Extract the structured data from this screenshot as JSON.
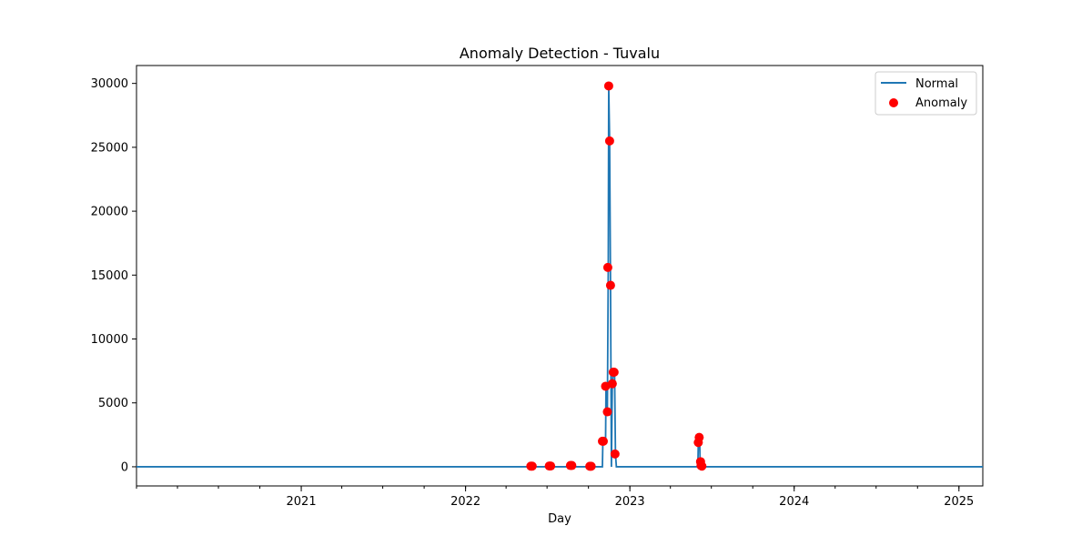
{
  "chart_data": {
    "type": "line",
    "title": "Anomaly Detection - Tuvalu",
    "xlabel": "Day",
    "ylabel": "",
    "xlim": [
      "2020-01-01",
      "2025-02-23"
    ],
    "ylim": [
      -1500,
      31400
    ],
    "x_ticks": [
      {
        "date": "2021-01-01",
        "label": "2021"
      },
      {
        "date": "2022-01-01",
        "label": "2022"
      },
      {
        "date": "2023-01-01",
        "label": "2023"
      },
      {
        "date": "2024-01-01",
        "label": "2024"
      },
      {
        "date": "2025-01-01",
        "label": "2025"
      }
    ],
    "y_ticks": [
      0,
      5000,
      10000,
      15000,
      20000,
      25000,
      30000
    ],
    "legend": {
      "position": "top-right",
      "entries": [
        "Normal",
        "Anomaly"
      ]
    },
    "colors": {
      "normal": "#1f77b4",
      "anomaly": "#ff0000"
    },
    "series": [
      {
        "name": "Normal",
        "kind": "line",
        "points": [
          [
            "2020-01-01",
            0
          ],
          [
            "2022-11-01",
            0
          ],
          [
            "2022-11-02",
            2000
          ],
          [
            "2022-11-08",
            2000
          ],
          [
            "2022-11-09",
            6300
          ],
          [
            "2022-11-12",
            4300
          ],
          [
            "2022-11-14",
            15600
          ],
          [
            "2022-11-15",
            29800
          ],
          [
            "2022-11-17",
            25500
          ],
          [
            "2022-11-19",
            14200
          ],
          [
            "2022-11-21",
            0
          ],
          [
            "2022-11-23",
            6500
          ],
          [
            "2022-11-25",
            7400
          ],
          [
            "2022-11-28",
            7400
          ],
          [
            "2022-11-30",
            1000
          ],
          [
            "2022-12-02",
            0
          ],
          [
            "2023-06-01",
            0
          ],
          [
            "2023-06-02",
            1900
          ],
          [
            "2023-06-05",
            2300
          ],
          [
            "2023-06-06",
            300
          ],
          [
            "2023-06-08",
            300
          ],
          [
            "2023-06-10",
            0
          ],
          [
            "2025-02-23",
            0
          ]
        ]
      },
      {
        "name": "Anomaly",
        "kind": "scatter",
        "points": [
          [
            "2022-05-26",
            50
          ],
          [
            "2022-05-29",
            50
          ],
          [
            "2022-07-06",
            60
          ],
          [
            "2022-07-09",
            60
          ],
          [
            "2022-08-22",
            100
          ],
          [
            "2022-08-25",
            100
          ],
          [
            "2022-10-04",
            40
          ],
          [
            "2022-10-07",
            40
          ],
          [
            "2022-11-01",
            2000
          ],
          [
            "2022-11-03",
            2000
          ],
          [
            "2022-11-08",
            6300
          ],
          [
            "2022-11-12",
            4300
          ],
          [
            "2022-11-13",
            15600
          ],
          [
            "2022-11-15",
            29800
          ],
          [
            "2022-11-17",
            25500
          ],
          [
            "2022-11-19",
            14200
          ],
          [
            "2022-11-23",
            6500
          ],
          [
            "2022-11-25",
            7400
          ],
          [
            "2022-11-27",
            7400
          ],
          [
            "2022-11-29",
            1000
          ],
          [
            "2023-06-02",
            1900
          ],
          [
            "2023-06-04",
            2300
          ],
          [
            "2023-06-07",
            400
          ],
          [
            "2023-06-08",
            100
          ],
          [
            "2023-06-10",
            50
          ]
        ]
      }
    ]
  }
}
